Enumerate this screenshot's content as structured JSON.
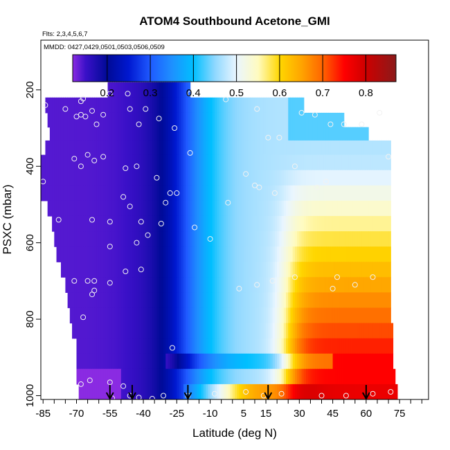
{
  "chart_data": {
    "type": "heatmap",
    "title": "ATOM4 Southbound Acetone_GMI",
    "annotations": [
      "Flts: 2,3,4,5,6,7",
      "MMDD: 0427,0429,0501,0503,0506,0509"
    ],
    "xlabel": "Latitude (deg N)",
    "ylabel": "PSXC (mbar)",
    "xlim": [
      -86,
      88
    ],
    "ylim": [
      1010,
      70
    ],
    "x_ticks": [
      -85,
      -70,
      -55,
      -40,
      -25,
      -10,
      5,
      15,
      30,
      45,
      60,
      75
    ],
    "y_ticks": [
      200,
      400,
      600,
      800,
      1000
    ],
    "x_minor_step": 5,
    "colorbar": {
      "range": [
        0.12,
        0.87
      ],
      "ticks": [
        0.2,
        0.3,
        0.4,
        0.5,
        0.6,
        0.7,
        0.8
      ],
      "tick_labels": [
        "0.2",
        "0.3",
        "0.4",
        "0.5",
        "0.6",
        "0.7",
        "0.8"
      ],
      "stops": [
        {
          "v": 0.12,
          "c": "#8a2be2"
        },
        {
          "v": 0.15,
          "c": "#3a10c8"
        },
        {
          "v": 0.2,
          "c": "#000a96"
        },
        {
          "v": 0.25,
          "c": "#0018d0"
        },
        {
          "v": 0.3,
          "c": "#1f5aff"
        },
        {
          "v": 0.35,
          "c": "#1e90ff"
        },
        {
          "v": 0.4,
          "c": "#00bfff"
        },
        {
          "v": 0.45,
          "c": "#8fd8ff"
        },
        {
          "v": 0.5,
          "c": "#eaf6ff"
        },
        {
          "v": 0.55,
          "c": "#fffbc0"
        },
        {
          "v": 0.6,
          "c": "#ffd700"
        },
        {
          "v": 0.65,
          "c": "#ffa500"
        },
        {
          "v": 0.7,
          "c": "#ff6400"
        },
        {
          "v": 0.75,
          "c": "#ff0000"
        },
        {
          "v": 0.8,
          "c": "#cd0000"
        },
        {
          "v": 0.87,
          "c": "#8b1a1a"
        }
      ]
    },
    "level_bands": [
      {
        "p": 200,
        "lat_min": -56,
        "lat_max": -19
      },
      {
        "p": 240,
        "lat_min": -84,
        "lat_max": 32
      },
      {
        "p": 280,
        "lat_min": -83,
        "lat_max": 50
      },
      {
        "p": 315,
        "lat_min": -82,
        "lat_max": 61
      },
      {
        "p": 350,
        "lat_min": -84,
        "lat_max": 71
      },
      {
        "p": 390,
        "lat_min": -86,
        "lat_max": 71
      },
      {
        "p": 430,
        "lat_min": -87,
        "lat_max": 71
      },
      {
        "p": 470,
        "lat_min": -86,
        "lat_max": 71
      },
      {
        "p": 510,
        "lat_min": -83,
        "lat_max": 71
      },
      {
        "p": 550,
        "lat_min": -81,
        "lat_max": 71
      },
      {
        "p": 590,
        "lat_min": -80,
        "lat_max": 71
      },
      {
        "p": 630,
        "lat_min": -79,
        "lat_max": 71
      },
      {
        "p": 670,
        "lat_min": -77,
        "lat_max": 71
      },
      {
        "p": 710,
        "lat_min": -75,
        "lat_max": 71
      },
      {
        "p": 750,
        "lat_min": -74,
        "lat_max": 71
      },
      {
        "p": 790,
        "lat_min": -73,
        "lat_max": 71
      },
      {
        "p": 830,
        "lat_min": -72,
        "lat_max": 72
      },
      {
        "p": 870,
        "lat_min": -70,
        "lat_max": 72
      },
      {
        "p": 910,
        "lat_min": -70,
        "lat_max": 72
      },
      {
        "p": 950,
        "lat_min": -70,
        "lat_max": 73
      },
      {
        "p": 990,
        "lat_min": -69,
        "lat_max": 74
      }
    ],
    "profile_arrows_lat": [
      -55,
      -45,
      -20,
      16,
      60
    ],
    "observation_points": [
      [
        -84,
        240
      ],
      [
        -75,
        250
      ],
      [
        -68,
        230
      ],
      [
        -67,
        223
      ],
      [
        -63,
        255
      ],
      [
        -58,
        265
      ],
      [
        -46,
        250
      ],
      [
        -39,
        250
      ],
      [
        -33,
        275
      ],
      [
        -26,
        300
      ],
      [
        -68,
        265
      ],
      [
        -70,
        270
      ],
      [
        -66,
        270
      ],
      [
        -61,
        290
      ],
      [
        -42,
        290
      ],
      [
        -55,
        210
      ],
      [
        -47,
        210
      ],
      [
        -19,
        210
      ],
      [
        -3,
        225
      ],
      [
        11,
        250
      ],
      [
        16,
        325
      ],
      [
        21,
        325
      ],
      [
        31,
        260
      ],
      [
        37,
        265
      ],
      [
        44,
        290
      ],
      [
        50,
        290
      ],
      [
        58,
        290
      ],
      [
        66,
        260
      ],
      [
        -71,
        380
      ],
      [
        -65,
        370
      ],
      [
        -62,
        385
      ],
      [
        -58,
        375
      ],
      [
        -48,
        405
      ],
      [
        -43,
        400
      ],
      [
        -68,
        400
      ],
      [
        -34,
        430
      ],
      [
        -19,
        365
      ],
      [
        6,
        420
      ],
      [
        10,
        450
      ],
      [
        12,
        455
      ],
      [
        19,
        470
      ],
      [
        28,
        400
      ],
      [
        38,
        455
      ],
      [
        42,
        440
      ],
      [
        70,
        375
      ],
      [
        -85,
        440
      ],
      [
        -78,
        540
      ],
      [
        -63,
        540
      ],
      [
        -55,
        545
      ],
      [
        -49,
        480
      ],
      [
        -46,
        505
      ],
      [
        -30,
        495
      ],
      [
        -28,
        470
      ],
      [
        -25,
        470
      ],
      [
        -2,
        495
      ],
      [
        -41,
        545
      ],
      [
        -32,
        550
      ],
      [
        -17,
        560
      ],
      [
        -38,
        580
      ],
      [
        -43,
        600
      ],
      [
        -55,
        610
      ],
      [
        -10,
        590
      ],
      [
        -71,
        700
      ],
      [
        -65,
        700
      ],
      [
        -62,
        700
      ],
      [
        -55,
        705
      ],
      [
        -48,
        675
      ],
      [
        -41,
        670
      ],
      [
        -62,
        725
      ],
      [
        -63,
        735
      ],
      [
        -67,
        795
      ],
      [
        3,
        720
      ],
      [
        11,
        710
      ],
      [
        18,
        700
      ],
      [
        28,
        690
      ],
      [
        45,
        720
      ],
      [
        47,
        690
      ],
      [
        55,
        710
      ],
      [
        63,
        690
      ],
      [
        -27,
        875
      ],
      [
        -64,
        960
      ],
      [
        -55,
        965
      ],
      [
        -49,
        975
      ],
      [
        -68,
        970
      ],
      [
        -46,
        1000
      ],
      [
        -42,
        1005
      ],
      [
        -31,
        1000
      ],
      [
        -20,
        1000
      ],
      [
        -8,
        995
      ],
      [
        6,
        990
      ],
      [
        14,
        1000
      ],
      [
        22,
        995
      ],
      [
        40,
        1000
      ],
      [
        51,
        1000
      ],
      [
        63,
        995
      ],
      [
        71,
        990
      ],
      [
        -36,
        1008
      ],
      [
        -54,
        1007
      ]
    ]
  }
}
